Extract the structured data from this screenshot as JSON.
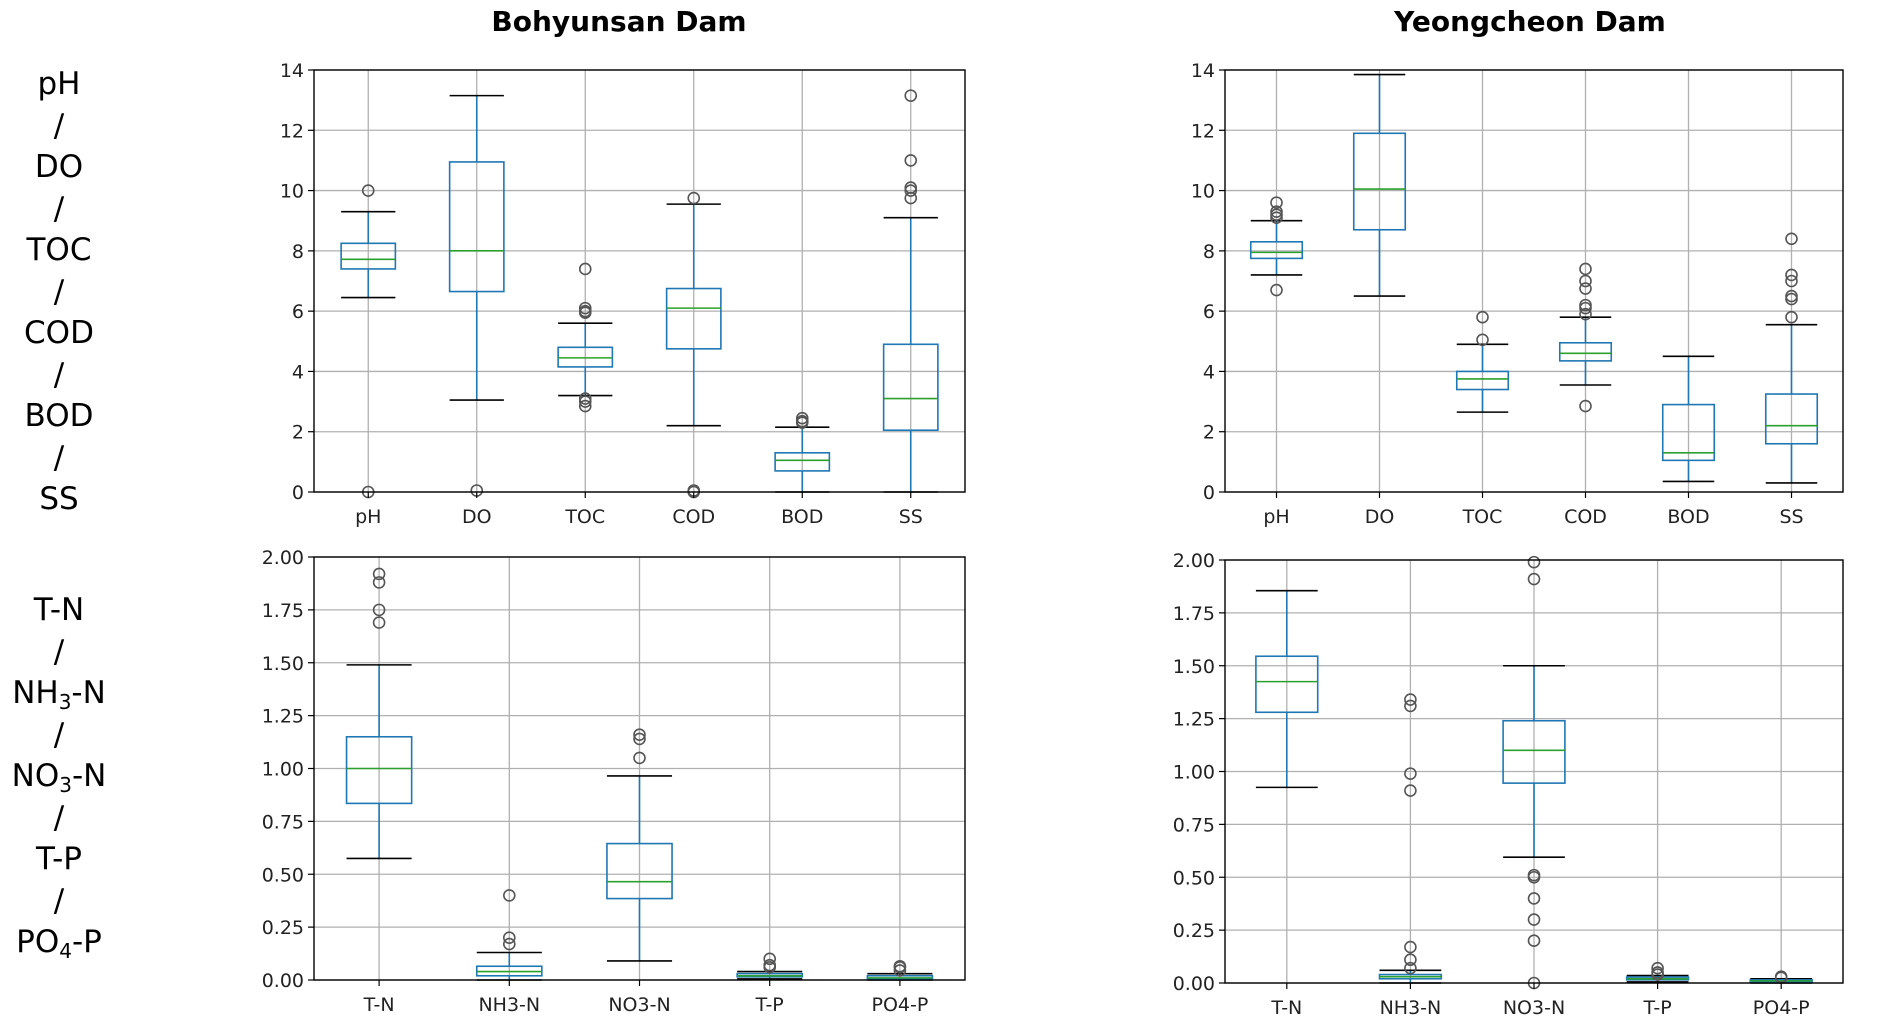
{
  "row_labels": {
    "top": [
      "pH",
      "/",
      "DO",
      "/",
      "TOC",
      "/",
      "COD",
      "/",
      "BOD",
      "/",
      "SS"
    ],
    "bottom": [
      {
        "base": "T-N",
        "sub": "",
        "post": ""
      },
      {
        "base": "/",
        "sub": "",
        "post": ""
      },
      {
        "base": "NH",
        "sub": "3",
        "post": "-N"
      },
      {
        "base": "/",
        "sub": "",
        "post": ""
      },
      {
        "base": "NO",
        "sub": "3",
        "post": "-N"
      },
      {
        "base": "/",
        "sub": "",
        "post": ""
      },
      {
        "base": "T-P",
        "sub": "",
        "post": ""
      },
      {
        "base": "/",
        "sub": "",
        "post": ""
      },
      {
        "base": "PO",
        "sub": "4",
        "post": "-P"
      }
    ]
  },
  "colors": {
    "box": "#1f77b4",
    "median": "#2ca02c",
    "grid": "#b0b0b0",
    "frame": "#000000",
    "flier": "#555555"
  },
  "chart_data": [
    {
      "type": "box",
      "title": "Bohyunsan Dam",
      "ylim": [
        0,
        14
      ],
      "yticks": [
        "0",
        "2",
        "4",
        "6",
        "8",
        "10",
        "12",
        "14"
      ],
      "ytick_values": [
        0,
        2,
        4,
        6,
        8,
        10,
        12,
        14
      ],
      "categories": [
        "pH",
        "DO",
        "TOC",
        "COD",
        "BOD",
        "SS"
      ],
      "boxes": [
        {
          "q1": 7.4,
          "median": 7.72,
          "q3": 8.25,
          "whislo": 6.45,
          "whishi": 9.3,
          "fliers": [
            10.0,
            0.0
          ]
        },
        {
          "q1": 6.65,
          "median": 8.0,
          "q3": 10.95,
          "whislo": 3.05,
          "whishi": 13.15,
          "fliers": [
            0.05
          ]
        },
        {
          "q1": 4.15,
          "median": 4.45,
          "q3": 4.8,
          "whislo": 3.2,
          "whishi": 5.6,
          "fliers": [
            7.4,
            6.1,
            6.0,
            5.95,
            3.1,
            3.0,
            2.85
          ]
        },
        {
          "q1": 4.75,
          "median": 6.1,
          "q3": 6.75,
          "whislo": 2.2,
          "whishi": 9.55,
          "fliers": [
            9.75,
            0.05,
            0.0
          ]
        },
        {
          "q1": 0.7,
          "median": 1.05,
          "q3": 1.3,
          "whislo": 0.0,
          "whishi": 2.15,
          "fliers": [
            2.45,
            2.35,
            2.3
          ]
        },
        {
          "q1": 2.05,
          "median": 3.1,
          "q3": 4.9,
          "whislo": 0.0,
          "whishi": 9.1,
          "fliers": [
            13.15,
            11.0,
            10.1,
            10.0,
            9.75
          ]
        }
      ]
    },
    {
      "type": "box",
      "title": "Yeongcheon Dam",
      "ylim": [
        0,
        14
      ],
      "yticks": [
        "0",
        "2",
        "4",
        "6",
        "8",
        "10",
        "12",
        "14"
      ],
      "ytick_values": [
        0,
        2,
        4,
        6,
        8,
        10,
        12,
        14
      ],
      "categories": [
        "pH",
        "DO",
        "TOC",
        "COD",
        "BOD",
        "SS"
      ],
      "boxes": [
        {
          "q1": 7.75,
          "median": 7.95,
          "q3": 8.3,
          "whislo": 7.2,
          "whishi": 9.0,
          "fliers": [
            9.6,
            9.3,
            9.2,
            9.1,
            6.7
          ]
        },
        {
          "q1": 8.7,
          "median": 10.05,
          "q3": 11.9,
          "whislo": 6.5,
          "whishi": 13.85,
          "fliers": []
        },
        {
          "q1": 3.4,
          "median": 3.75,
          "q3": 4.0,
          "whislo": 2.65,
          "whishi": 4.9,
          "fliers": [
            5.8,
            5.05
          ]
        },
        {
          "q1": 4.35,
          "median": 4.6,
          "q3": 4.95,
          "whislo": 3.55,
          "whishi": 5.8,
          "fliers": [
            7.4,
            7.0,
            6.75,
            6.2,
            6.1,
            5.9,
            2.85
          ]
        },
        {
          "q1": 1.05,
          "median": 1.3,
          "q3": 2.9,
          "whislo": 0.35,
          "whishi": 4.5,
          "fliers": []
        },
        {
          "q1": 1.6,
          "median": 2.2,
          "q3": 3.25,
          "whislo": 0.3,
          "whishi": 5.55,
          "fliers": [
            8.4,
            7.2,
            7.0,
            6.5,
            6.4,
            5.8
          ]
        }
      ]
    },
    {
      "type": "box",
      "title": "",
      "ylim": [
        0,
        2
      ],
      "yticks": [
        "0.00",
        "0.25",
        "0.50",
        "0.75",
        "1.00",
        "1.25",
        "1.50",
        "1.75",
        "2.00"
      ],
      "ytick_values": [
        0,
        0.25,
        0.5,
        0.75,
        1.0,
        1.25,
        1.5,
        1.75,
        2.0
      ],
      "categories": [
        "T-N",
        "NH3-N",
        "NO3-N",
        "T-P",
        "PO4-P"
      ],
      "boxes": [
        {
          "q1": 0.835,
          "median": 1.0,
          "q3": 1.15,
          "whislo": 0.575,
          "whishi": 1.49,
          "fliers": [
            1.92,
            1.88,
            1.75,
            1.69
          ]
        },
        {
          "q1": 0.02,
          "median": 0.04,
          "q3": 0.065,
          "whislo": 0.0,
          "whishi": 0.13,
          "fliers": [
            0.4,
            0.2,
            0.17
          ]
        },
        {
          "q1": 0.385,
          "median": 0.465,
          "q3": 0.645,
          "whislo": 0.09,
          "whishi": 0.965,
          "fliers": [
            1.16,
            1.14,
            1.05
          ]
        },
        {
          "q1": 0.015,
          "median": 0.02,
          "q3": 0.03,
          "whislo": 0.005,
          "whishi": 0.04,
          "fliers": [
            0.1,
            0.07,
            0.06
          ]
        },
        {
          "q1": 0.005,
          "median": 0.01,
          "q3": 0.02,
          "whislo": 0.0,
          "whishi": 0.03,
          "fliers": [
            0.065,
            0.06,
            0.045
          ]
        }
      ]
    },
    {
      "type": "box",
      "title": "",
      "ylim": [
        0,
        2
      ],
      "yticks": [
        "0.00",
        "0.25",
        "0.50",
        "0.75",
        "1.00",
        "1.25",
        "1.50",
        "1.75",
        "2.00"
      ],
      "ytick_values": [
        0,
        0.25,
        0.5,
        0.75,
        1.0,
        1.25,
        1.5,
        1.75,
        2.0
      ],
      "categories": [
        "T-N",
        "NH3-N",
        "NO3-N",
        "T-P",
        "PO4-P"
      ],
      "boxes": [
        {
          "q1": 1.28,
          "median": 1.425,
          "q3": 1.545,
          "whislo": 0.925,
          "whishi": 1.855,
          "fliers": []
        },
        {
          "q1": 0.02,
          "median": 0.03,
          "q3": 0.04,
          "whislo": 0.0,
          "whishi": 0.06,
          "fliers": [
            1.34,
            1.31,
            0.99,
            0.91,
            0.17,
            0.11,
            0.07
          ]
        },
        {
          "q1": 0.945,
          "median": 1.1,
          "q3": 1.24,
          "whislo": 0.595,
          "whishi": 1.5,
          "fliers": [
            1.99,
            1.91,
            0.51,
            0.5,
            0.4,
            0.3,
            0.2,
            0.0
          ]
        },
        {
          "q1": 0.015,
          "median": 0.02,
          "q3": 0.028,
          "whislo": 0.005,
          "whishi": 0.035,
          "fliers": [
            0.07,
            0.05,
            0.04
          ]
        },
        {
          "q1": 0.005,
          "median": 0.01,
          "q3": 0.015,
          "whislo": 0.0,
          "whishi": 0.02,
          "fliers": [
            0.03,
            0.025
          ]
        }
      ]
    }
  ]
}
